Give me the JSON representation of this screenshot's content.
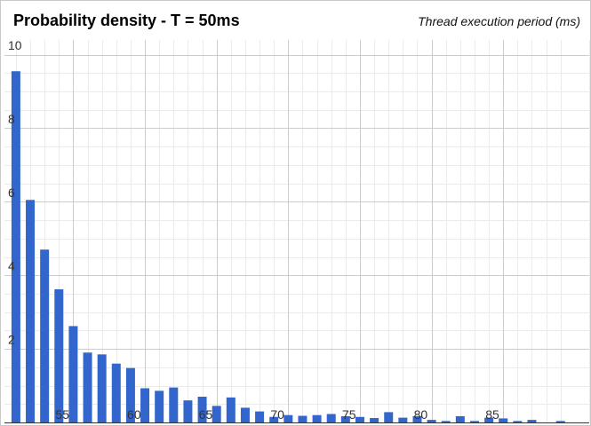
{
  "chart_data": {
    "type": "bar",
    "title": "Probability density - T = 50ms",
    "subtitle": "Thread execution period (ms)",
    "x": [
      51,
      52,
      53,
      54,
      55,
      56,
      57,
      58,
      59,
      60,
      61,
      62,
      63,
      64,
      65,
      66,
      67,
      68,
      69,
      70,
      71,
      72,
      73,
      74,
      75,
      76,
      77,
      78,
      79,
      80,
      81,
      82,
      83,
      84,
      85,
      86,
      87,
      88,
      89,
      90
    ],
    "values": [
      9.55,
      6.05,
      4.7,
      3.62,
      2.62,
      1.9,
      1.85,
      1.6,
      1.48,
      0.93,
      0.86,
      0.95,
      0.6,
      0.7,
      0.45,
      0.68,
      0.4,
      0.3,
      0.15,
      0.2,
      0.18,
      0.2,
      0.23,
      0.17,
      0.15,
      0.12,
      0.28,
      0.13,
      0.17,
      0.07,
      0.04,
      0.17,
      0.04,
      0.13,
      0.11,
      0.04,
      0.07,
      0.0,
      0.04,
      0.0
    ],
    "x_ticks": [
      55,
      60,
      65,
      70,
      75,
      80,
      85
    ],
    "y_ticks": [
      2,
      4,
      6,
      8,
      10
    ],
    "ylim": [
      0,
      10.4
    ],
    "xlim": [
      50.2,
      91
    ],
    "grid": true,
    "bar_color": "#3366cc",
    "grid_major_color": "#cccccc",
    "grid_minor_color": "#ebebeb"
  }
}
